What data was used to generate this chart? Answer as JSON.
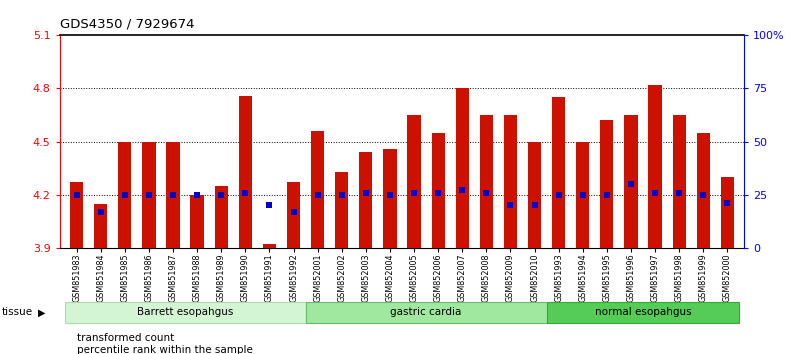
{
  "title": "GDS4350 / 7929674",
  "samples": [
    "GSM851983",
    "GSM851984",
    "GSM851985",
    "GSM851986",
    "GSM851987",
    "GSM851988",
    "GSM851989",
    "GSM851990",
    "GSM851991",
    "GSM851992",
    "GSM852001",
    "GSM852002",
    "GSM852003",
    "GSM852004",
    "GSM852005",
    "GSM852006",
    "GSM852007",
    "GSM852008",
    "GSM852009",
    "GSM852010",
    "GSM851993",
    "GSM851994",
    "GSM851995",
    "GSM851996",
    "GSM851997",
    "GSM851998",
    "GSM851999",
    "GSM852000"
  ],
  "bar_values": [
    4.27,
    4.15,
    4.5,
    4.5,
    4.5,
    4.2,
    4.25,
    4.76,
    3.92,
    4.27,
    4.56,
    4.33,
    4.44,
    4.46,
    4.65,
    4.55,
    4.8,
    4.65,
    4.65,
    4.5,
    4.75,
    4.5,
    4.62,
    4.65,
    4.82,
    4.65,
    4.55,
    4.3
  ],
  "blue_pct": [
    25,
    17,
    25,
    25,
    25,
    25,
    25,
    26,
    20,
    17,
    25,
    25,
    26,
    25,
    26,
    26,
    27,
    26,
    20,
    20,
    25,
    25,
    25,
    30,
    26,
    26,
    25,
    21
  ],
  "groups": [
    {
      "label": "Barrett esopahgus",
      "start": 0,
      "end": 9,
      "color": "#d4f5d4",
      "edgecolor": "#aaddaa"
    },
    {
      "label": "gastric cardia",
      "start": 10,
      "end": 19,
      "color": "#a0e8a0",
      "edgecolor": "#66bb66"
    },
    {
      "label": "normal esopahgus",
      "start": 20,
      "end": 27,
      "color": "#55cc55",
      "edgecolor": "#33aa33"
    }
  ],
  "ylim_left": [
    3.9,
    5.1
  ],
  "ylim_right": [
    0,
    100
  ],
  "yticks_left": [
    3.9,
    4.2,
    4.5,
    4.8,
    5.1
  ],
  "yticks_right": [
    0,
    25,
    50,
    75,
    100
  ],
  "ytick_labels_right": [
    "0",
    "25",
    "50",
    "75",
    "100%"
  ],
  "bar_color": "#cc1100",
  "blue_color": "#0000cc",
  "tissue_label": "tissue"
}
